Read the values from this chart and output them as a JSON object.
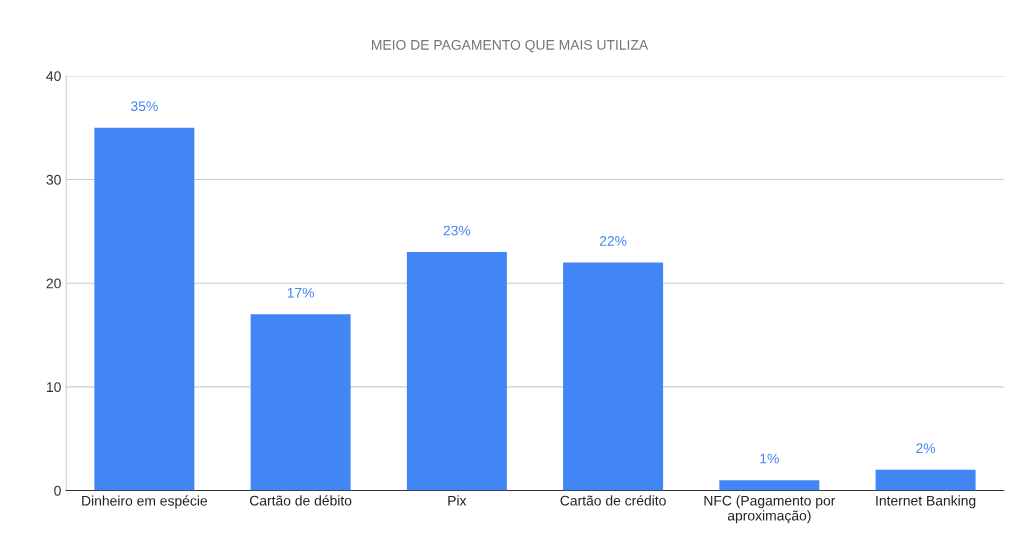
{
  "chart_data": {
    "type": "bar",
    "title": "MEIO DE PAGAMENTO QUE MAIS UTILIZA",
    "categories": [
      "Dinheiro em espécie",
      "Cartão de débito",
      "Pix",
      "Cartão de crédito",
      "NFC (Pagamento por aproximação)",
      "Internet Banking"
    ],
    "values": [
      35,
      17,
      23,
      22,
      1,
      2
    ],
    "value_labels": [
      "35%",
      "17%",
      "23%",
      "22%",
      "1%",
      "2%"
    ],
    "color": "#4285f4",
    "ylim": [
      0,
      40
    ],
    "yticks": [
      0,
      10,
      20,
      30,
      40
    ],
    "grid": "y"
  }
}
